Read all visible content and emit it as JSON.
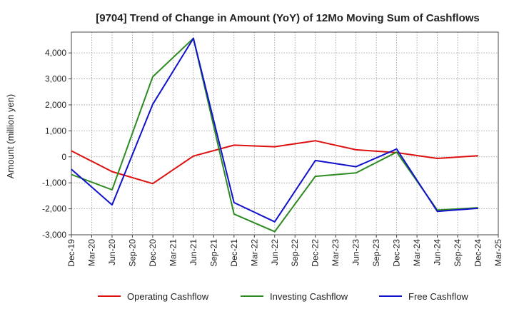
{
  "chart_data": {
    "type": "line",
    "title": "[9704]  Trend of Change in Amount (YoY) of 12Mo Moving Sum of Cashflows",
    "xlabel": "",
    "ylabel": "Amount (million yen)",
    "ylim": [
      -3000,
      4800
    ],
    "yticks": [
      -3000,
      -2000,
      -1000,
      0,
      1000,
      2000,
      3000,
      4000
    ],
    "ytick_labels": [
      "-3,000",
      "-2,000",
      "-1,000",
      "0",
      "1,000",
      "2,000",
      "3,000",
      "4,000"
    ],
    "categories": [
      "Dec-19",
      "Mar-20",
      "Jun-20",
      "Sep-20",
      "Dec-20",
      "Mar-21",
      "Jun-21",
      "Sep-21",
      "Dec-21",
      "Mar-22",
      "Jun-22",
      "Sep-22",
      "Dec-22",
      "Mar-23",
      "Jun-23",
      "Sep-23",
      "Dec-23",
      "Mar-24",
      "Jun-24",
      "Sep-24",
      "Dec-24",
      "Mar-25"
    ],
    "grid": true,
    "legend_position": "bottom",
    "series": [
      {
        "name": "Operating Cashflow",
        "color": "#dd1111",
        "points": [
          [
            0,
            230
          ],
          [
            2,
            -570
          ],
          [
            4,
            -1030
          ],
          [
            6,
            30
          ],
          [
            8,
            450
          ],
          [
            10,
            390
          ],
          [
            12,
            620
          ],
          [
            14,
            270
          ],
          [
            16,
            160
          ],
          [
            18,
            -60
          ],
          [
            20,
            40
          ]
        ]
      },
      {
        "name": "Investing Cashflow",
        "color": "#2e8b22",
        "points": [
          [
            0,
            -680
          ],
          [
            2,
            -1270
          ],
          [
            4,
            3080
          ],
          [
            6,
            4560
          ],
          [
            8,
            -2200
          ],
          [
            10,
            -2880
          ],
          [
            12,
            -750
          ],
          [
            14,
            -620
          ],
          [
            16,
            180
          ],
          [
            18,
            -2050
          ],
          [
            20,
            -1960
          ]
        ]
      },
      {
        "name": "Free Cashflow",
        "color": "#1111cc",
        "points": [
          [
            0,
            -480
          ],
          [
            2,
            -1850
          ],
          [
            4,
            2020
          ],
          [
            6,
            4560
          ],
          [
            8,
            -1760
          ],
          [
            10,
            -2500
          ],
          [
            12,
            -140
          ],
          [
            14,
            -380
          ],
          [
            16,
            300
          ],
          [
            18,
            -2100
          ],
          [
            20,
            -1980
          ]
        ]
      }
    ]
  }
}
